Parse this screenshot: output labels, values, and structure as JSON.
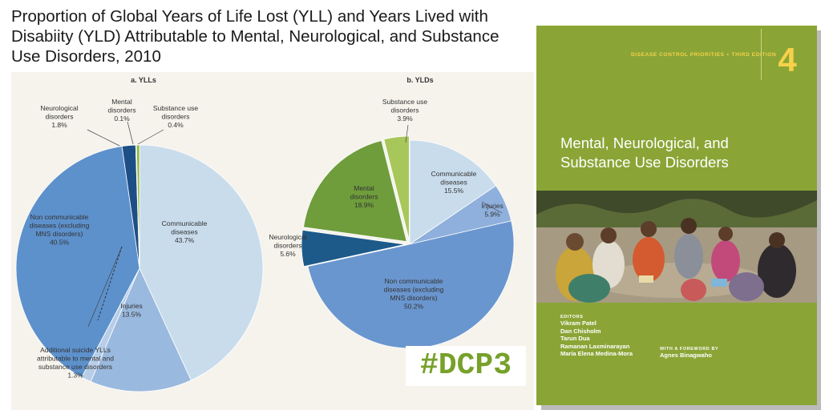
{
  "main_title": "Proportion of Global Years of Life Lost (YLL) and Years Lived with Disabiity (YLD) Attributable to Mental, Neurological, and Substance Use Disorders, 2010",
  "chart_data": [
    {
      "type": "pie",
      "title": "a. YLLs",
      "labels": [
        "Communicable diseases",
        "Injuries",
        "Additional suicide YLLs attributable to mental and substance use disorders",
        "Non communicable diseases (excluding MNS disorders)",
        "Neurological disorders",
        "Mental disorders",
        "Substance use disorders"
      ],
      "values": [
        43.7,
        13.5,
        1.3,
        40.5,
        1.8,
        0.1,
        0.4
      ],
      "label_lines": [
        [
          "Communicable",
          "diseases",
          "43.7%"
        ],
        [
          "Injuries",
          "13.5%"
        ],
        [
          "Additional suicide YLLs",
          "attributable to mental and",
          "substance use disorders",
          "1.3%"
        ],
        [
          "Non communicable",
          "diseases (excluding",
          "MNS disorders)",
          "40.5%"
        ],
        [
          "Neurological",
          "disorders",
          "1.8%"
        ],
        [
          "Mental",
          "disorders",
          "0.1%"
        ],
        [
          "Substance use",
          "disorders",
          "0.4%"
        ]
      ],
      "colors": [
        "#c9dcec",
        "#9ab9de",
        "#b7cde8",
        "#5d91cc",
        "#1d4f86",
        "#2f7d2f",
        "#8fb83e"
      ]
    },
    {
      "type": "pie",
      "title": "b. YLDs",
      "labels": [
        "Communicable diseases",
        "Injuries",
        "Non communicable diseases (excluding MNS disorders)",
        "Neurological disorders",
        "Mental disorders",
        "Substance use disorders"
      ],
      "values": [
        15.5,
        5.9,
        50.2,
        5.6,
        18.9,
        3.9
      ],
      "label_lines": [
        [
          "Communicable",
          "diseases",
          "15.5%"
        ],
        [
          "Injuries",
          "5.9%"
        ],
        [
          "Non communicable",
          "diseases (excluding",
          "MNS disorders)",
          "50.2%"
        ],
        [
          "Neurological",
          "disorders",
          "5.6%"
        ],
        [
          "Mental",
          "disorders",
          "18.9%"
        ],
        [
          "Substance use",
          "disorders",
          "3.9%"
        ]
      ],
      "colors": [
        "#c9dcec",
        "#8fb0dc",
        "#6a96cf",
        "#1d5a8a",
        "#6f9d3c",
        "#a8c75a"
      ]
    }
  ],
  "hashtag": "#DCP3",
  "book": {
    "series": "DISEASE CONTROL PRIORITIES",
    "separator": "•",
    "edition": "THIRD EDITION",
    "volume": "4",
    "title_line1": "Mental, Neurological, and",
    "title_line2": "Substance Use Disorders",
    "editors_heading": "EDITORS",
    "editors": [
      "Vikram Patel",
      "Dan Chisholm",
      "Tarun Dua",
      "Ramanan Laxminarayan",
      "María Elena Medina-Mora"
    ],
    "foreword_heading": "WITH A FOREWORD BY",
    "foreword_author": "Agnes Binagwaho"
  },
  "colors": {
    "cover_green": "#8aa536",
    "accent_yellow": "#f7d14a",
    "hashtag_green": "#77a12a",
    "panel_bg": "#f5f3ec"
  }
}
